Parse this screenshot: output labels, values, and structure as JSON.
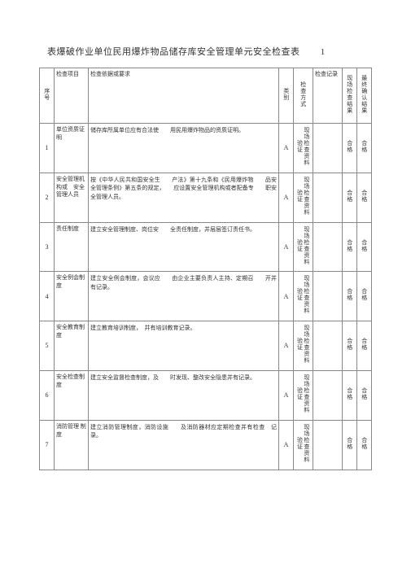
{
  "title": "表爆破作业单位民用爆炸物品储存库安全管理单元安全检查表",
  "title_suffix": "1",
  "columns": {
    "seq": "序号",
    "item": "检查项目",
    "requirement": "检查依据或要求",
    "category": "类别",
    "method": "检查方式",
    "record": "检查记录",
    "site_result": "现场检查结果",
    "final_result": "最终确认结果"
  },
  "rows": [
    {
      "seq": "1",
      "item": "单位资质证明",
      "requirement": "储存库所属单位应有合法使　　用民用爆炸物品的资质证明。",
      "category": "A",
      "method": "现场检查资料验证",
      "record": "",
      "site": "合格",
      "final": "合格"
    },
    {
      "seq": "2",
      "item": "安全管理机构或　安全管理人员",
      "requirement": "按《中华人民共和国安全生　　产法》第十九条和《民用爆炸物　　品安全管理条例》第五条的规定，　　应设置安全管理机构或者配备专　　职安全管理人员。",
      "category": "A",
      "method": "现场检查资料验证",
      "record": "",
      "site": "合格",
      "final": "合格"
    },
    {
      "seq": "3",
      "item": "责任制度",
      "requirement": "建立安全管理制度、岗位安　　全责任制度，并层层签订责任书。",
      "category": "A",
      "method": "现场检查资料验证",
      "record": "",
      "site": "合格",
      "final": "合格"
    },
    {
      "seq": "4",
      "item": "安全例会制度",
      "requirement": "建立安全例会制度，会议应　　由企业主要负责人主持、定期召　　开并有记录。",
      "category": "A",
      "method": "现场检查资料验证",
      "record": "",
      "site": "合格",
      "final": "合格"
    },
    {
      "seq": "5",
      "item": "安全教育制度",
      "requirement": "建立教育培训制度，　并有培训教育记录。",
      "category": "A",
      "method": "现场检查资料验证",
      "record": "",
      "site": "合格",
      "final": "合格"
    },
    {
      "seq": "6",
      "item": "安全检查制度",
      "requirement": "建立安全监督检查制度，及　　时发现、整改安全隐患并有记录。",
      "category": "A",
      "method": "现场检查资料验证",
      "record": "",
      "site": "合格",
      "final": "合格"
    },
    {
      "seq": "7",
      "item": "消防管理 制度",
      "requirement": "建立消防管理制度，消防设施　　及消防器材应定期检查并有检查　记录。",
      "category": "A",
      "method": "现场检查资料验证",
      "record": "",
      "site": "合格",
      "final": "合格"
    }
  ],
  "styling": {
    "page_bg": "#ffffff",
    "text_color": "#333333",
    "border_color": "#888888",
    "title_fontsize": 11,
    "cell_fontsize": 7,
    "font_family": "SimSun"
  }
}
